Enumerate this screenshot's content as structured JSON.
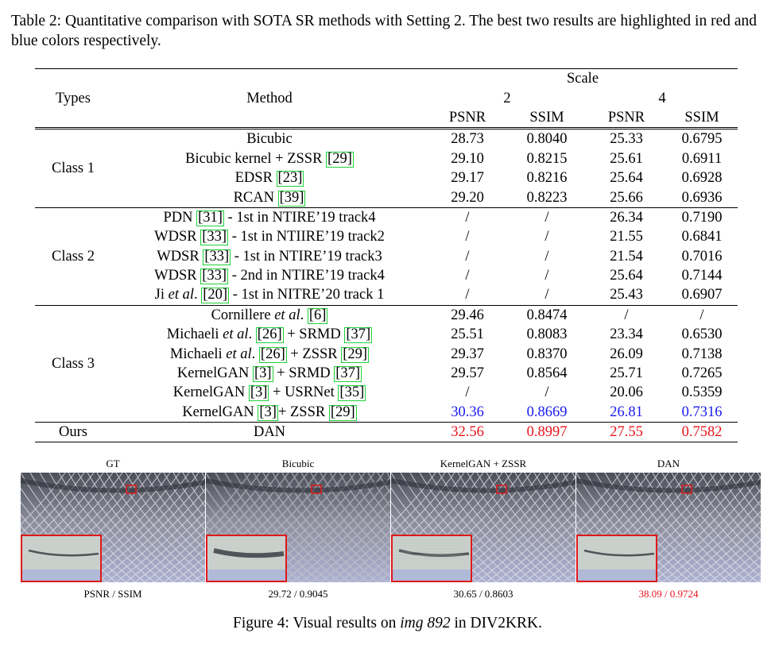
{
  "table_caption": "Table 2: Quantitative comparison with SOTA SR methods with Setting 2. The best two results are highlighted in red and blue colors respectively.",
  "header": {
    "types": "Types",
    "method": "Method",
    "scale": "Scale",
    "scale2": "2",
    "scale4": "4",
    "psnr": "PSNR",
    "ssim": "SSIM"
  },
  "classes": {
    "c1": "Class 1",
    "c2": "Class 2",
    "c3": "Class 3",
    "ours": "Ours"
  },
  "rows": [
    {
      "method": [
        "Bicubic"
      ],
      "v": [
        "28.73",
        "0.8040",
        "25.33",
        "0.6795"
      ]
    },
    {
      "method": [
        "Bicubic kernel + ZSSR ",
        "[29]"
      ],
      "v": [
        "29.10",
        "0.8215",
        "25.61",
        "0.6911"
      ]
    },
    {
      "method": [
        "EDSR ",
        "[23]"
      ],
      "v": [
        "29.17",
        "0.8216",
        "25.64",
        "0.6928"
      ]
    },
    {
      "method": [
        "RCAN ",
        "[39]"
      ],
      "v": [
        "29.20",
        "0.8223",
        "25.66",
        "0.6936"
      ]
    },
    {
      "method": [
        "PDN ",
        "[31]",
        " - 1st in NTIRE’19 track4"
      ],
      "v": [
        "/",
        "/",
        "26.34",
        "0.7190"
      ]
    },
    {
      "method": [
        "WDSR ",
        "[33]",
        " - 1st in NTIIRE’19 track2"
      ],
      "v": [
        "/",
        "/",
        "21.55",
        "0.6841"
      ]
    },
    {
      "method": [
        "WDSR ",
        "[33]",
        " - 1st in NTIRE’19 track3"
      ],
      "v": [
        "/",
        "/",
        "21.54",
        "0.7016"
      ]
    },
    {
      "method": [
        "WDSR ",
        "[33]",
        " - 2nd in NTIRE’19 track4"
      ],
      "v": [
        "/",
        "/",
        "25.64",
        "0.7144"
      ]
    },
    {
      "method": [
        "Ji ",
        "et al",
        ". ",
        "[20]",
        " - 1st in NITRE’20 track 1"
      ],
      "v": [
        "/",
        "/",
        "25.43",
        "0.6907"
      ]
    },
    {
      "method": [
        "Cornillere ",
        "et al",
        ". ",
        "[6]"
      ],
      "v": [
        "29.46",
        "0.8474",
        "/",
        "/"
      ]
    },
    {
      "method": [
        "Michaeli ",
        "et al",
        ". ",
        "[26]",
        " + SRMD ",
        "[37]"
      ],
      "v": [
        "25.51",
        "0.8083",
        "23.34",
        "0.6530"
      ]
    },
    {
      "method": [
        "Michaeli ",
        "et al",
        ". ",
        "[26]",
        " + ZSSR ",
        "[29]"
      ],
      "v": [
        "29.37",
        "0.8370",
        "26.09",
        "0.7138"
      ]
    },
    {
      "method": [
        "KernelGAN ",
        "[3]",
        " + SRMD ",
        "[37]"
      ],
      "v": [
        "29.57",
        "0.8564",
        "25.71",
        "0.7265"
      ]
    },
    {
      "method": [
        "KernelGAN ",
        "[3]",
        " + USRNet ",
        "[35]"
      ],
      "v": [
        "/",
        "/",
        "20.06",
        "0.5359"
      ]
    },
    {
      "method": [
        "KernelGAN ",
        "[3]",
        "+ ZSSR ",
        "[29]"
      ],
      "v": [
        "30.36",
        "0.8669",
        "26.81",
        "0.7316"
      ]
    },
    {
      "method": [
        "DAN"
      ],
      "v": [
        "32.56",
        "0.8997",
        "27.55",
        "0.7582"
      ]
    }
  ],
  "highlight_colors": {
    "best": "#e8141c",
    "second": "#1a1af0",
    "ref_box": "#1fd13a"
  },
  "figure": {
    "panels": [
      {
        "label": "GT",
        "metric": "PSNR / SSIM"
      },
      {
        "label": "Bicubic",
        "metric": "29.72 / 0.9045"
      },
      {
        "label": "KernelGAN + ZSSR",
        "metric": "30.65 / 0.8603"
      },
      {
        "label": "DAN",
        "metric": "38.09 / 0.9724"
      }
    ],
    "caption_prefix": "Figure 4: Visual results on ",
    "caption_image": "img 892",
    "caption_suffix": " in DIV2KRK."
  }
}
